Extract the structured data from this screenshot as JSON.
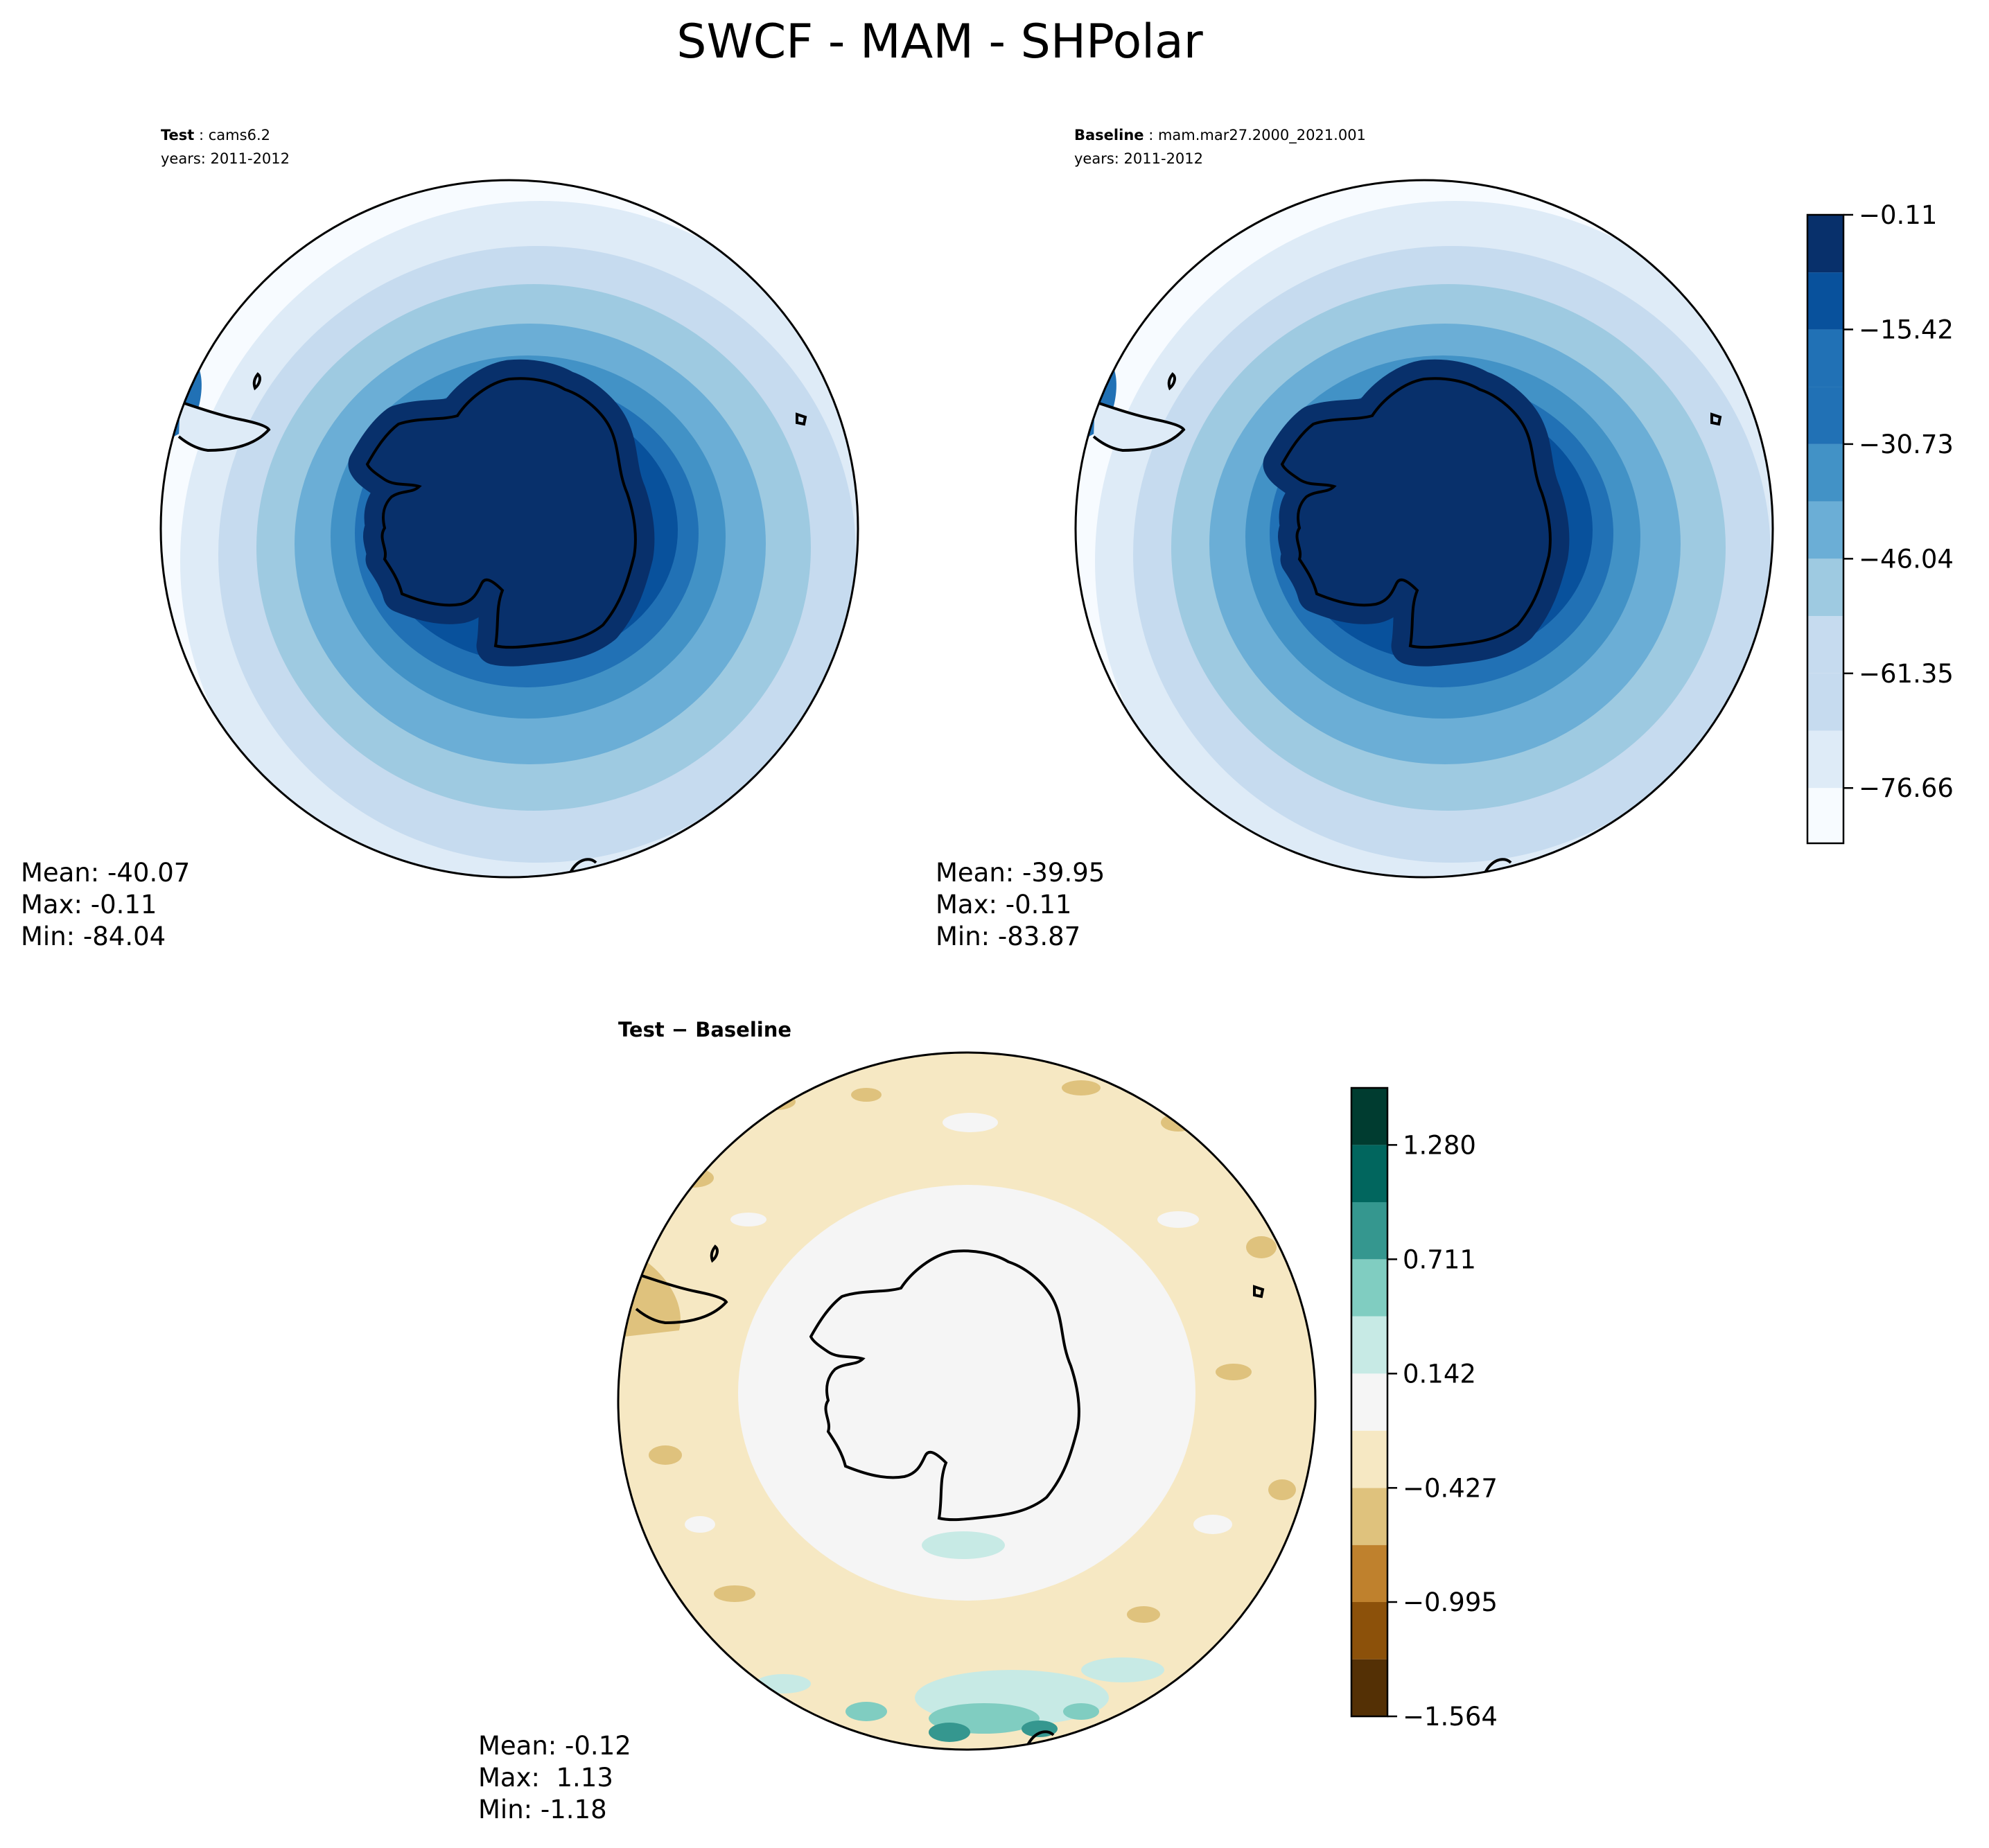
{
  "figure_title": "SWCF - MAM - SHPolar",
  "test": {
    "label": "Test",
    "name": "cams6.2",
    "years": "years: 2011-2012",
    "stats": {
      "mean": "Mean: -40.07",
      "max": "Max: -0.11",
      "min": "Min: -84.04"
    }
  },
  "baseline": {
    "label": "Baseline",
    "name": "mam.mar27.2000_2021.001",
    "years": "years: 2011-2012",
    "stats": {
      "mean": "Mean: -39.95",
      "max": "Max: -0.11",
      "min": "Min: -83.87"
    }
  },
  "diff": {
    "title": "Test − Baseline",
    "stats": {
      "mean": "Mean: -0.12",
      "max": "Max:  1.13",
      "min": "Min: -1.18"
    }
  },
  "colors": {
    "blues": [
      "#f7fbff",
      "#deebf7",
      "#c6dbef",
      "#9ecae1",
      "#6baed6",
      "#4292c6",
      "#2171b5",
      "#08519c",
      "#08306b"
    ],
    "brbg": [
      "#543005",
      "#8c510a",
      "#bf812d",
      "#dfc27d",
      "#f6e8c3",
      "#f5f5f5",
      "#c7eae5",
      "#80cdc1",
      "#35978f",
      "#01665e",
      "#003c30"
    ],
    "coast": "#000000"
  },
  "chart_data": [
    {
      "type": "heatmap",
      "title": "Test : cams6.2",
      "subtitle": "years: 2011-2012",
      "projection": "south-polar-stereographic",
      "variable": "SWCF",
      "season": "MAM",
      "mean": -40.07,
      "max": -0.11,
      "min": -84.04,
      "colorbar": {
        "levels": [
          -84.04,
          -76.66,
          -69.0,
          -61.35,
          -53.7,
          -46.04,
          -38.4,
          -30.73,
          -23.1,
          -15.42,
          -7.8,
          -0.11
        ],
        "ticks": [
          -0.11,
          -15.42,
          -30.73,
          -46.04,
          -61.35,
          -76.66
        ],
        "tick_labels": [
          "−0.11",
          "−15.42",
          "−30.73",
          "−46.04",
          "−61.35",
          "−76.66"
        ],
        "colormap": "Blues_r",
        "placement": "right"
      }
    },
    {
      "type": "heatmap",
      "title": "Baseline : mam.mar27.2000_2021.001",
      "subtitle": "years: 2011-2012",
      "projection": "south-polar-stereographic",
      "variable": "SWCF",
      "season": "MAM",
      "mean": -39.95,
      "max": -0.11,
      "min": -83.87
    },
    {
      "type": "heatmap",
      "title": "Test − Baseline",
      "projection": "south-polar-stereographic",
      "mean": -0.12,
      "max": 1.13,
      "min": -1.18,
      "colorbar": {
        "levels": [
          -1.564,
          -1.28,
          -0.995,
          -0.711,
          -0.427,
          -0.142,
          0.142,
          0.427,
          0.711,
          0.995,
          1.28,
          1.564
        ],
        "ticks": [
          1.28,
          0.711,
          0.142,
          -0.427,
          -0.995,
          -1.564
        ],
        "tick_labels": [
          "1.280",
          "0.711",
          "0.142",
          "−0.427",
          "−0.995",
          "−1.564"
        ],
        "colormap": "BrBG",
        "placement": "right"
      }
    }
  ]
}
